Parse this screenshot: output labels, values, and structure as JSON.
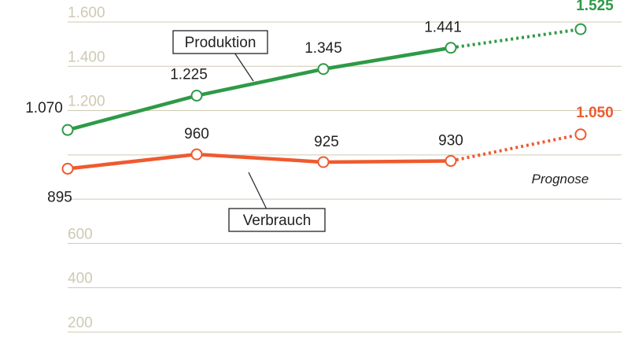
{
  "colors": {
    "production": "#2e9a47",
    "consumption": "#ef5a2f",
    "grid": "#cfc9b3",
    "tick_text": "#cfc9b3",
    "text": "#222222"
  },
  "chart_data": {
    "type": "line",
    "xlabel": "",
    "ylabel": "",
    "ylim": [
      0,
      1650
    ],
    "y_ticks": [
      {
        "value": 1600,
        "label": "1.600"
      },
      {
        "value": 1400,
        "label": "1.400"
      },
      {
        "value": 1200,
        "label": "1.200"
      },
      {
        "value": 600,
        "label": "600"
      },
      {
        "value": 400,
        "label": "400"
      },
      {
        "value": 200,
        "label": "200"
      }
    ],
    "grid": true,
    "prognose_label": "Prognose",
    "series": [
      {
        "name": "Produktion",
        "color_key": "production",
        "values": [
          1070,
          1225,
          1345,
          1441,
          1525
        ],
        "labels": [
          "1.070",
          "1.225",
          "1.345",
          "1.441",
          "1.525"
        ],
        "forecast_from_index": 3
      },
      {
        "name": "Verbrauch",
        "color_key": "consumption",
        "values": [
          895,
          960,
          925,
          930,
          1050
        ],
        "labels": [
          "895",
          "960",
          "925",
          "930",
          "1.050"
        ],
        "forecast_from_index": 3
      }
    ]
  }
}
